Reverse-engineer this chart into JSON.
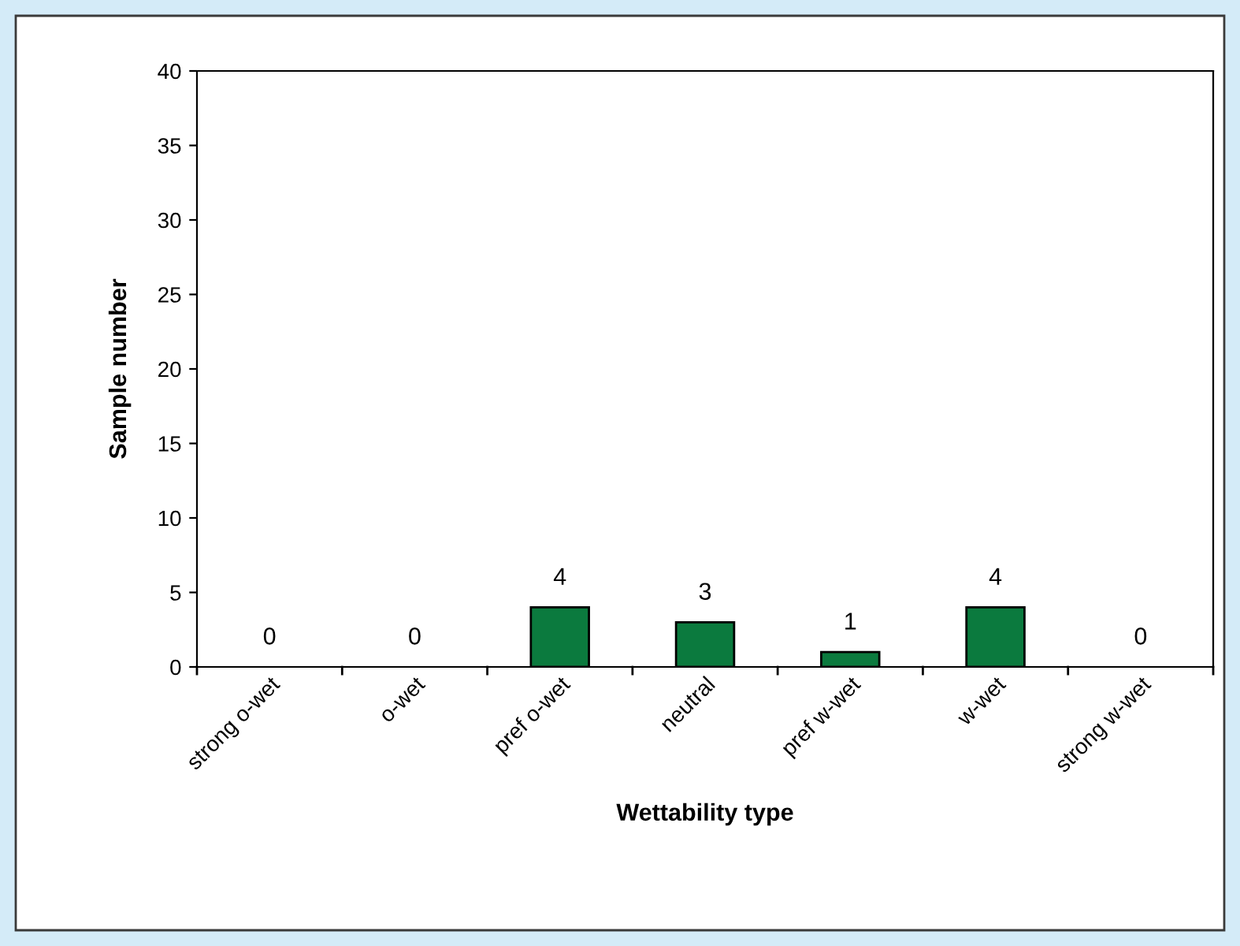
{
  "chart_data": {
    "type": "bar",
    "xlabel": "Wettability type",
    "ylabel": "Sample number",
    "categories": [
      "strong o-wet",
      "o-wet",
      "pref o-wet",
      "neutral",
      "pref w-wet",
      "w-wet",
      "strong w-wet"
    ],
    "values": [
      0,
      0,
      4,
      3,
      1,
      4,
      0
    ],
    "color": "#0b7a3e",
    "ylim": [
      0,
      40
    ],
    "yticks": [
      0,
      5,
      10,
      15,
      20,
      25,
      30,
      35,
      40
    ],
    "grid": false,
    "data_labels": true
  }
}
